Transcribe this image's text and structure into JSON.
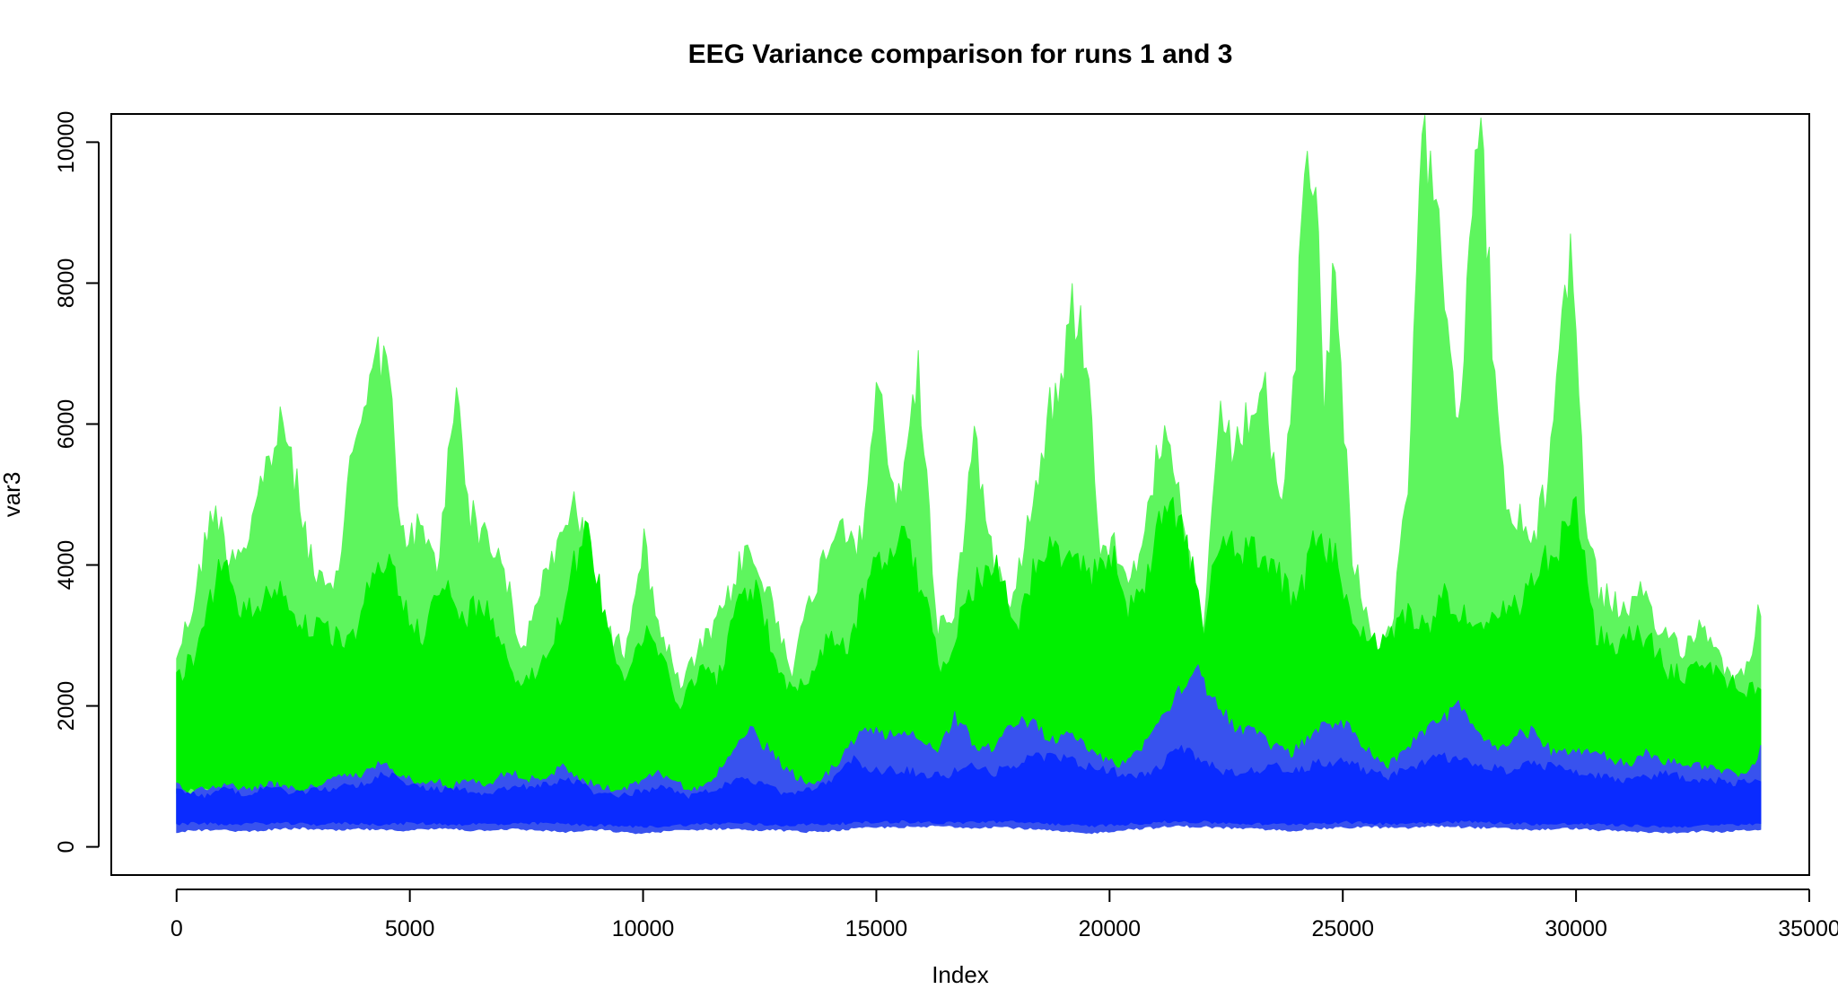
{
  "chart_data": {
    "type": "area",
    "title": "EEG Variance comparison for runs 1 and 3",
    "xlabel": "Index",
    "ylabel": "var3",
    "xlim": [
      -1400,
      35000
    ],
    "ylim": [
      -400,
      10400
    ],
    "x_ticks": [
      0,
      5000,
      10000,
      15000,
      20000,
      25000,
      30000,
      35000
    ],
    "y_ticks": [
      0,
      2000,
      4000,
      6000,
      8000,
      10000
    ],
    "grid": false,
    "legend": "none",
    "x_end": 34000,
    "series": [
      {
        "color": "#5ef55e",
        "x": [
          0,
          300,
          800,
          1100,
          1500,
          1900,
          2300,
          2600,
          3000,
          3400,
          3800,
          4200,
          4500,
          4800,
          5200,
          5600,
          6000,
          6300,
          6700,
          7000,
          7400,
          7700,
          8100,
          8500,
          8800,
          9200,
          9600,
          10000,
          10400,
          10800,
          11200,
          11700,
          12200,
          12700,
          13200,
          13700,
          14200,
          14700,
          15000,
          15400,
          15900,
          16300,
          16700,
          17100,
          17500,
          17900,
          18300,
          18700,
          19000,
          19200,
          19500,
          19800,
          20100,
          20500,
          20900,
          21200,
          21600,
          22000,
          22400,
          22700,
          23000,
          23300,
          23600,
          23900,
          24200,
          24400,
          24600,
          24800,
          25000,
          25200,
          25500,
          25800,
          26100,
          26400,
          26700,
          27000,
          27200,
          27500,
          27800,
          28000,
          28200,
          28500,
          28800,
          29100,
          29400,
          29700,
          29900,
          30200,
          30500,
          30800,
          31100,
          31400,
          31700,
          32000,
          32300,
          32600,
          32900,
          33200,
          33500,
          33800,
          34000
        ],
        "upper": [
          2900,
          3500,
          5200,
          4400,
          4600,
          5700,
          6400,
          5300,
          4000,
          3800,
          6200,
          7100,
          7700,
          4600,
          4800,
          4200,
          7000,
          5000,
          4600,
          4300,
          2800,
          3800,
          4300,
          5300,
          4400,
          3200,
          3000,
          4600,
          3200,
          2400,
          2950,
          3500,
          4500,
          3800,
          2700,
          4000,
          5000,
          4500,
          7100,
          5000,
          7200,
          3300,
          3600,
          6300,
          4200,
          3800,
          5000,
          6600,
          7000,
          8200,
          7500,
          4600,
          4500,
          4100,
          5500,
          6100,
          4800,
          3200,
          6500,
          5900,
          6500,
          7000,
          5100,
          6200,
          10400,
          10400,
          6600,
          8800,
          6600,
          4500,
          3500,
          2700,
          3500,
          5500,
          10400,
          10400,
          8200,
          6400,
          10400,
          10400,
          7800,
          4900,
          4900,
          4600,
          5500,
          8200,
          9000,
          5000,
          3800,
          3700,
          3500,
          3800,
          3300,
          3200,
          3000,
          3300,
          3200,
          2700,
          2500,
          3100,
          3850
        ],
        "lower": [
          300,
          350,
          350,
          320,
          300,
          320,
          320,
          320,
          340,
          300,
          320,
          300,
          320,
          320,
          320,
          300,
          320,
          300,
          300,
          310,
          320,
          290,
          300,
          280,
          300,
          290,
          280,
          260,
          280,
          300,
          290,
          300,
          300,
          280,
          290,
          320,
          300,
          310,
          310,
          330,
          320,
          330,
          320,
          310,
          330,
          320,
          300,
          280,
          270,
          260,
          250,
          280,
          300,
          320,
          340,
          320,
          330,
          300,
          300,
          320,
          300,
          290,
          270,
          280,
          300,
          290,
          300,
          310,
          300,
          320,
          310,
          300,
          320,
          310,
          320,
          330,
          320,
          340,
          310,
          330,
          300,
          310,
          320,
          320,
          300,
          320,
          320,
          300,
          290,
          280,
          280,
          300,
          270,
          260,
          270,
          280,
          270,
          280,
          290,
          280,
          280
        ]
      },
      {
        "color": "#00f000",
        "x": [
          0,
          500,
          1000,
          1300,
          1700,
          2100,
          2500,
          2900,
          3300,
          3700,
          4100,
          4500,
          4900,
          5300,
          5700,
          6100,
          6500,
          6900,
          7300,
          7700,
          8100,
          8500,
          8800,
          9200,
          9600,
          10000,
          10400,
          10800,
          11200,
          11600,
          12000,
          12400,
          12800,
          13200,
          13600,
          14000,
          14400,
          14800,
          15200,
          15600,
          16000,
          16400,
          16800,
          17200,
          17600,
          18000,
          18400,
          18800,
          19200,
          19600,
          20000,
          20400,
          20800,
          21200,
          21600,
          22000,
          22400,
          22800,
          23200,
          23600,
          24000,
          24400,
          24800,
          25200,
          25600,
          26000,
          26400,
          26800,
          27200,
          27600,
          28000,
          28400,
          28800,
          29200,
          29600,
          30000,
          30400,
          30800,
          31200,
          31600,
          32000,
          32400,
          32800,
          33200,
          33600,
          34000
        ],
        "upper": [
          2500,
          3000,
          4500,
          3500,
          3600,
          4000,
          3500,
          3300,
          3200,
          3000,
          3800,
          4400,
          3600,
          3200,
          4000,
          3400,
          3700,
          3300,
          2500,
          2600,
          3200,
          4200,
          4700,
          3500,
          2500,
          3200,
          2900,
          2100,
          2700,
          2500,
          3600,
          3900,
          2900,
          2300,
          2600,
          3200,
          3000,
          4000,
          4400,
          4700,
          3800,
          2600,
          3500,
          4100,
          4200,
          3300,
          4200,
          4500,
          4200,
          4100,
          4500,
          3600,
          4000,
          5300,
          4800,
          3300,
          4700,
          4400,
          4500,
          4100,
          3600,
          4600,
          4400,
          3500,
          3000,
          3200,
          3500,
          3300,
          3800,
          3500,
          3200,
          3500,
          3600,
          4200,
          4500,
          5100,
          3200,
          3000,
          3200,
          3100,
          2600,
          2600,
          2800,
          2500,
          2400,
          2300
        ],
        "lower": [
          700,
          750,
          750,
          720,
          700,
          720,
          720,
          720,
          740,
          700,
          720,
          700,
          720,
          720,
          720,
          700,
          720,
          700,
          700,
          710,
          720,
          690,
          700,
          680,
          700,
          690,
          680,
          660,
          680,
          700,
          690,
          700,
          700,
          680,
          690,
          720,
          700,
          710,
          710,
          730,
          720,
          730,
          720,
          710,
          730,
          720,
          700,
          680,
          670,
          660,
          650,
          680,
          700,
          720,
          740,
          720,
          730,
          700,
          700,
          720,
          700,
          690,
          670,
          680,
          700,
          690,
          700,
          710,
          700,
          720,
          710,
          700,
          720,
          710,
          720,
          730,
          720,
          740,
          710,
          730,
          700,
          710,
          720,
          720,
          700,
          720
        ]
      },
      {
        "color": "#3852ee",
        "x": [
          0,
          300,
          700,
          1100,
          1500,
          1900,
          2300,
          2700,
          3100,
          3500,
          3900,
          4300,
          4700,
          5100,
          5500,
          5900,
          6300,
          6700,
          7100,
          7500,
          7900,
          8300,
          8700,
          9100,
          9500,
          9900,
          10300,
          10700,
          11100,
          11500,
          11900,
          12300,
          12700,
          13100,
          13500,
          13900,
          14300,
          14700,
          15100,
          15500,
          15900,
          16300,
          16700,
          17100,
          17500,
          17900,
          18300,
          18700,
          19100,
          19500,
          19900,
          20300,
          20700,
          21100,
          21500,
          21900,
          22300,
          22700,
          23100,
          23500,
          23900,
          24300,
          24700,
          25100,
          25500,
          25900,
          26300,
          26700,
          27100,
          27500,
          27900,
          28300,
          28700,
          29100,
          29500,
          29900,
          30300,
          30700,
          31100,
          31500,
          31900,
          32300,
          32700,
          33100,
          33500,
          33800,
          34000
        ],
        "upper": [
          1000,
          800,
          900,
          950,
          850,
          950,
          900,
          850,
          950,
          1050,
          1050,
          1250,
          1150,
          1000,
          1000,
          900,
          1050,
          900,
          1150,
          1000,
          1050,
          1200,
          1000,
          900,
          850,
          950,
          1150,
          950,
          850,
          1050,
          1400,
          1750,
          1450,
          1150,
          950,
          1050,
          1400,
          1750,
          1700,
          1750,
          1650,
          1400,
          1950,
          1550,
          1450,
          1800,
          1900,
          1600,
          1700,
          1500,
          1300,
          1250,
          1500,
          1950,
          2400,
          2650,
          2100,
          1800,
          1700,
          1500,
          1400,
          1650,
          1900,
          1800,
          1500,
          1200,
          1400,
          1700,
          1900,
          2100,
          1700,
          1450,
          1650,
          1750,
          1400,
          1450,
          1400,
          1350,
          1200,
          1400,
          1300,
          1250,
          1200,
          1150,
          1100,
          1200,
          1600
        ],
        "lower": [
          200,
          220,
          230,
          220,
          210,
          230,
          240,
          250,
          230,
          220,
          240,
          230,
          220,
          230,
          240,
          250,
          220,
          230,
          240,
          230,
          220,
          200,
          210,
          230,
          200,
          180,
          200,
          220,
          230,
          240,
          250,
          220,
          230,
          220,
          200,
          210,
          230,
          250,
          260,
          270,
          260,
          280,
          270,
          260,
          270,
          260,
          240,
          220,
          200,
          180,
          200,
          230,
          250,
          260,
          280,
          270,
          260,
          250,
          240,
          230,
          220,
          240,
          250,
          260,
          270,
          260,
          250,
          270,
          280,
          270,
          260,
          250,
          240,
          230,
          240,
          250,
          230,
          220,
          210,
          200,
          190,
          200,
          210,
          200,
          220,
          230,
          240
        ]
      },
      {
        "color": "#0a2bff",
        "x": [
          0,
          500,
          1000,
          1500,
          2000,
          2500,
          3000,
          3500,
          4000,
          4500,
          5000,
          5500,
          6000,
          6500,
          7000,
          7500,
          8000,
          8500,
          9000,
          9500,
          10000,
          10500,
          11000,
          11500,
          12000,
          12500,
          13000,
          13500,
          14000,
          14500,
          15000,
          15500,
          16000,
          16500,
          17000,
          17500,
          18000,
          18500,
          19000,
          19500,
          20000,
          20500,
          21000,
          21500,
          22000,
          22500,
          23000,
          23500,
          24000,
          24500,
          25000,
          25500,
          26000,
          26500,
          27000,
          27500,
          28000,
          28500,
          29000,
          29500,
          30000,
          30500,
          31000,
          31500,
          32000,
          32500,
          33000,
          33500,
          34000
        ],
        "upper": [
          900,
          750,
          850,
          800,
          900,
          800,
          850,
          900,
          950,
          1100,
          950,
          850,
          900,
          800,
          850,
          900,
          950,
          1000,
          800,
          750,
          850,
          900,
          750,
          850,
          1000,
          950,
          800,
          850,
          950,
          1300,
          1150,
          1150,
          1100,
          1050,
          1250,
          1100,
          1250,
          1350,
          1350,
          1200,
          1150,
          1050,
          1150,
          1500,
          1300,
          1100,
          1150,
          1200,
          1150,
          1250,
          1300,
          1150,
          1050,
          1200,
          1350,
          1300,
          1200,
          1150,
          1250,
          1200,
          1100,
          1050,
          1000,
          1050,
          1100,
          1000,
          1000,
          950,
          1000
        ],
        "lower": [
          300,
          320,
          300,
          310,
          320,
          310,
          300,
          320,
          310,
          300,
          320,
          310,
          300,
          310,
          300,
          310,
          320,
          300,
          290,
          280,
          270,
          280,
          300,
          310,
          320,
          300,
          290,
          300,
          310,
          320,
          330,
          340,
          330,
          320,
          330,
          340,
          330,
          320,
          300,
          280,
          290,
          310,
          330,
          340,
          330,
          320,
          310,
          300,
          310,
          320,
          330,
          320,
          310,
          320,
          330,
          340,
          330,
          320,
          310,
          300,
          310,
          300,
          290,
          280,
          270,
          280,
          290,
          300,
          300
        ]
      }
    ]
  }
}
